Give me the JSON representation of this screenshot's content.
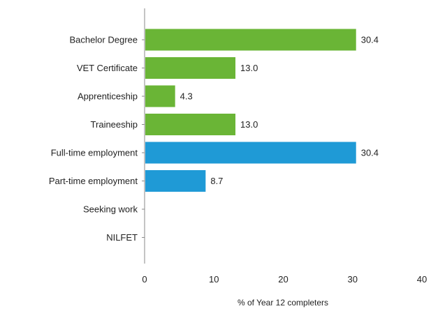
{
  "chart_data": {
    "type": "bar",
    "orientation": "horizontal",
    "categories": [
      "Bachelor Degree",
      "VET Certificate",
      "Apprenticeship",
      "Traineeship",
      "Full-time employment",
      "Part-time employment",
      "Seeking work",
      "NILFET"
    ],
    "values": [
      30.4,
      13.0,
      4.3,
      13.0,
      30.4,
      8.7,
      0,
      0
    ],
    "value_labels": [
      "30.4",
      "13.0",
      "4.3",
      "13.0",
      "30.4",
      "8.7",
      "",
      ""
    ],
    "bar_colors": [
      "#6ab536",
      "#6ab536",
      "#6ab536",
      "#6ab536",
      "#1f9ad6",
      "#1f9ad6",
      "#1f9ad6",
      "#1f9ad6"
    ],
    "xlim": [
      0,
      40
    ],
    "x_ticks": [
      0,
      10,
      20,
      30,
      40
    ],
    "xlabel": "% of Year 12 completers",
    "ylabel": "",
    "title": "",
    "grid": false,
    "legend": "none"
  }
}
